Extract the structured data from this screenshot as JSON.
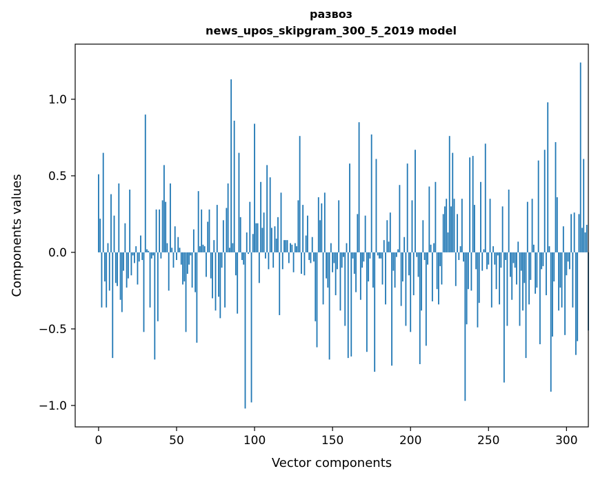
{
  "chart_data": {
    "type": "bar",
    "title_line1": "развоз",
    "title_line2": "news_upos_skipgram_300_5_2019 model",
    "xlabel": "Vector components",
    "ylabel": "Components values",
    "xlim": [
      -15,
      314
    ],
    "ylim": [
      -1.14,
      1.36
    ],
    "xticks": [
      0,
      50,
      100,
      150,
      200,
      250,
      300
    ],
    "xtick_labels": [
      "0",
      "50",
      "100",
      "150",
      "200",
      "250",
      "300"
    ],
    "yticks": [
      -1.0,
      -0.5,
      0.0,
      0.5,
      1.0
    ],
    "ytick_labels": [
      "−1.0",
      "−0.5",
      "0.0",
      "0.5",
      "1.0"
    ],
    "bar_color": "#1f77b4",
    "grid": false,
    "values": [
      0.51,
      0.22,
      -0.36,
      0.65,
      -0.19,
      -0.36,
      0.06,
      -0.25,
      0.38,
      -0.69,
      0.24,
      -0.2,
      -0.22,
      0.45,
      -0.31,
      -0.39,
      -0.12,
      0.19,
      -0.23,
      -0.17,
      0.41,
      -0.15,
      -0.02,
      -0.07,
      0.04,
      -0.21,
      -0.06,
      0.11,
      -0.05,
      -0.52,
      0.9,
      0.02,
      0.01,
      -0.36,
      -0.04,
      -0.02,
      -0.7,
      0.28,
      -0.45,
      0.28,
      -0.04,
      0.34,
      0.57,
      0.33,
      0.06,
      -0.25,
      0.45,
      0.03,
      -0.1,
      0.17,
      -0.05,
      0.1,
      0.03,
      -0.08,
      -0.21,
      -0.19,
      -0.52,
      -0.14,
      -0.08,
      -0.02,
      -0.23,
      0.15,
      -0.26,
      -0.59,
      0.4,
      0.04,
      0.28,
      0.05,
      0.04,
      -0.16,
      0.2,
      0.28,
      -0.17,
      -0.3,
      0.08,
      -0.38,
      0.31,
      -0.29,
      -0.43,
      -0.1,
      0.21,
      -0.36,
      0.29,
      0.45,
      0.03,
      1.13,
      0.06,
      0.86,
      -0.15,
      -0.4,
      0.65,
      0.23,
      -0.05,
      -0.08,
      -1.02,
      0.13,
      -0.01,
      0.33,
      -0.98,
      0.12,
      0.84,
      0.19,
      0.19,
      -0.2,
      0.46,
      0.16,
      0.26,
      -0.04,
      0.57,
      -0.11,
      0.49,
      0.16,
      -0.1,
      0.17,
      0.09,
      0.23,
      -0.41,
      0.39,
      -0.11,
      0.08,
      0.08,
      0.08,
      -0.07,
      0.06,
      0.05,
      -0.13,
      0.06,
      0.04,
      0.34,
      0.76,
      -0.14,
      0.31,
      -0.15,
      0.11,
      0.24,
      -0.05,
      -0.07,
      0.1,
      -0.06,
      -0.45,
      -0.62,
      0.36,
      0.21,
      0.32,
      -0.34,
      0.39,
      -0.17,
      -0.23,
      -0.7,
      0.06,
      -0.13,
      -0.07,
      -0.28,
      -0.11,
      0.34,
      -0.38,
      -0.1,
      -0.03,
      -0.48,
      0.06,
      -0.69,
      0.58,
      -0.68,
      -0.04,
      -0.14,
      -0.26,
      0.25,
      0.85,
      -0.31,
      -0.1,
      -0.06,
      0.24,
      -0.65,
      -0.19,
      -0.04,
      0.77,
      -0.23,
      -0.78,
      0.61,
      -0.02,
      -0.04,
      -0.04,
      -0.21,
      0.08,
      -0.34,
      0.21,
      0.07,
      0.26,
      -0.74,
      -0.12,
      -0.23,
      -0.03,
      0.02,
      0.44,
      -0.35,
      -0.19,
      0.1,
      -0.48,
      0.58,
      -0.15,
      -0.52,
      0.34,
      -0.28,
      0.67,
      -0.03,
      -0.16,
      -0.73,
      -0.38,
      0.21,
      -0.05,
      -0.61,
      -0.08,
      0.43,
      0.05,
      -0.32,
      0.06,
      0.46,
      -0.24,
      -0.34,
      -0.09,
      -0.21,
      0.25,
      0.3,
      0.35,
      0.13,
      0.76,
      0.3,
      0.65,
      0.35,
      -0.22,
      0.25,
      -0.05,
      0.04,
      0.35,
      -0.06,
      -0.97,
      -0.47,
      -0.24,
      0.62,
      -0.25,
      0.63,
      0.31,
      -0.11,
      -0.49,
      -0.33,
      0.46,
      -0.12,
      0.02,
      0.71,
      -0.11,
      -0.08,
      0.35,
      -0.36,
      0.04,
      -0.08,
      -0.24,
      -0.02,
      -0.34,
      -0.1,
      0.3,
      -0.85,
      -0.05,
      -0.48,
      0.41,
      -0.16,
      -0.31,
      -0.07,
      -0.1,
      -0.21,
      0.07,
      -0.48,
      -0.12,
      -0.38,
      -0.2,
      -0.69,
      0.33,
      -0.34,
      -0.18,
      0.35,
      0.05,
      -0.27,
      -0.23,
      0.6,
      -0.6,
      -0.11,
      -0.09,
      0.67,
      -0.28,
      0.98,
      0.04,
      -0.91,
      -0.55,
      -0.19,
      0.72,
      0.36,
      -0.38,
      -0.23,
      -0.36,
      0.17,
      -0.54,
      -0.15,
      -0.06,
      -0.11,
      0.25,
      -0.36,
      0.26,
      -0.67,
      -0.58,
      0.25,
      1.24,
      0.16,
      0.61,
      0.13,
      0.18,
      -0.51
    ]
  }
}
